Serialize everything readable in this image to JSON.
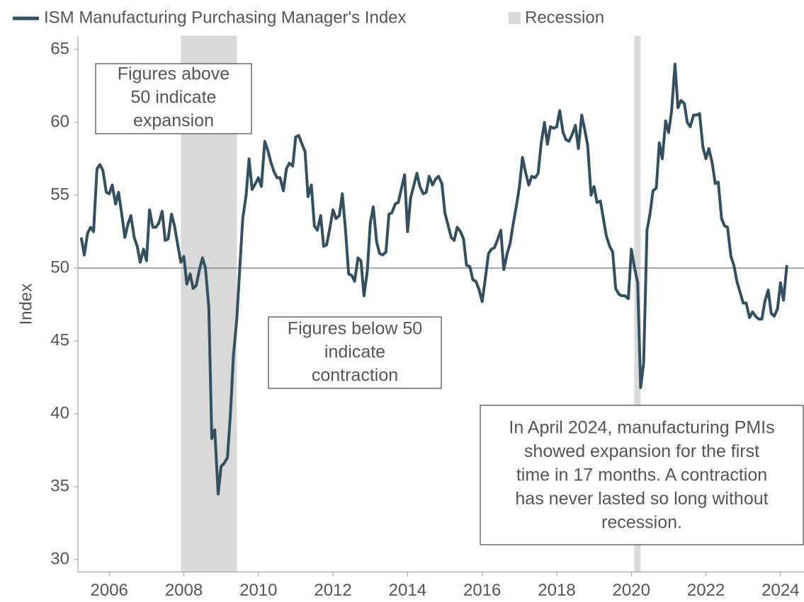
{
  "chart_data": {
    "type": "line",
    "y_label": "Index",
    "x": [
      2005.25,
      2005.33,
      2005.42,
      2005.5,
      2005.58,
      2005.67,
      2005.75,
      2005.83,
      2005.92,
      2006,
      2006.08,
      2006.17,
      2006.25,
      2006.33,
      2006.42,
      2006.5,
      2006.58,
      2006.67,
      2006.75,
      2006.83,
      2006.92,
      2007,
      2007.08,
      2007.17,
      2007.25,
      2007.33,
      2007.42,
      2007.5,
      2007.58,
      2007.67,
      2007.75,
      2007.83,
      2007.92,
      2008,
      2008.08,
      2008.17,
      2008.25,
      2008.33,
      2008.42,
      2008.5,
      2008.58,
      2008.67,
      2008.75,
      2008.83,
      2008.92,
      2009,
      2009.08,
      2009.17,
      2009.25,
      2009.33,
      2009.42,
      2009.5,
      2009.58,
      2009.67,
      2009.75,
      2009.83,
      2009.92,
      2010,
      2010.08,
      2010.17,
      2010.25,
      2010.33,
      2010.42,
      2010.5,
      2010.58,
      2010.67,
      2010.75,
      2010.83,
      2010.92,
      2011,
      2011.08,
      2011.17,
      2011.25,
      2011.33,
      2011.42,
      2011.5,
      2011.58,
      2011.67,
      2011.75,
      2011.83,
      2011.92,
      2012,
      2012.08,
      2012.17,
      2012.25,
      2012.33,
      2012.42,
      2012.5,
      2012.58,
      2012.67,
      2012.75,
      2012.83,
      2012.92,
      2013,
      2013.08,
      2013.17,
      2013.25,
      2013.33,
      2013.42,
      2013.5,
      2013.58,
      2013.67,
      2013.75,
      2013.83,
      2013.92,
      2014,
      2014.08,
      2014.17,
      2014.25,
      2014.33,
      2014.42,
      2014.5,
      2014.58,
      2014.67,
      2014.75,
      2014.83,
      2014.92,
      2015,
      2015.08,
      2015.17,
      2015.25,
      2015.33,
      2015.42,
      2015.5,
      2015.58,
      2015.67,
      2015.75,
      2015.83,
      2015.92,
      2016,
      2016.08,
      2016.17,
      2016.25,
      2016.33,
      2016.42,
      2016.5,
      2016.58,
      2016.67,
      2016.75,
      2016.83,
      2016.92,
      2017,
      2017.08,
      2017.17,
      2017.25,
      2017.33,
      2017.42,
      2017.5,
      2017.58,
      2017.67,
      2017.75,
      2017.83,
      2017.92,
      2018,
      2018.08,
      2018.17,
      2018.25,
      2018.33,
      2018.42,
      2018.5,
      2018.58,
      2018.67,
      2018.75,
      2018.83,
      2018.92,
      2019,
      2019.08,
      2019.17,
      2019.25,
      2019.33,
      2019.42,
      2019.5,
      2019.58,
      2019.67,
      2019.75,
      2019.83,
      2019.92,
      2020,
      2020.08,
      2020.17,
      2020.25,
      2020.33,
      2020.42,
      2020.5,
      2020.58,
      2020.67,
      2020.75,
      2020.83,
      2020.92,
      2021,
      2021.08,
      2021.17,
      2021.25,
      2021.33,
      2021.42,
      2021.5,
      2021.58,
      2021.67,
      2021.75,
      2021.83,
      2021.92,
      2022,
      2022.08,
      2022.17,
      2022.25,
      2022.33,
      2022.42,
      2022.5,
      2022.58,
      2022.67,
      2022.75,
      2022.83,
      2022.92,
      2023,
      2023.08,
      2023.17,
      2023.25,
      2023.33,
      2023.42,
      2023.5,
      2023.58,
      2023.67,
      2023.75,
      2023.83,
      2023.92,
      2024,
      2024.08,
      2024.17
    ],
    "series": [
      {
        "name": "ISM Manufacturing Purchasing Manager's Index",
        "color": "#34505f",
        "values": [
          52.1,
          50.9,
          52.4,
          52.8,
          52.5,
          56.8,
          57.1,
          56.7,
          55.2,
          55.1,
          55.7,
          54.4,
          55.2,
          53.8,
          52.1,
          53.0,
          53.6,
          52.1,
          51.5,
          50.4,
          51.3,
          50.5,
          54.0,
          52.8,
          52.8,
          53.1,
          53.9,
          51.9,
          52.0,
          53.7,
          52.9,
          51.7,
          50.4,
          50.8,
          48.9,
          49.6,
          48.6,
          48.8,
          49.9,
          50.7,
          50.0,
          47.3,
          38.3,
          38.9,
          34.5,
          36.4,
          36.6,
          37.0,
          40.0,
          44.0,
          46.5,
          50.0,
          53.4,
          55.0,
          57.5,
          55.4,
          55.8,
          56.2,
          55.6,
          58.7,
          58.1,
          57.3,
          56.6,
          56.2,
          56.2,
          55.3,
          56.8,
          57.2,
          57.0,
          59.0,
          59.1,
          58.5,
          58.0,
          54.9,
          55.7,
          52.9,
          52.6,
          53.6,
          51.5,
          51.6,
          52.8,
          54.0,
          53.4,
          53.6,
          55.1,
          52.8,
          49.6,
          49.5,
          49.1,
          50.7,
          50.5,
          48.1,
          49.8,
          53.1,
          54.2,
          51.8,
          51.0,
          50.9,
          51.1,
          53.7,
          53.8,
          54.4,
          54.5,
          55.4,
          56.4,
          52.5,
          54.8,
          55.7,
          56.5,
          55.6,
          55.1,
          55.2,
          56.3,
          55.7,
          56.1,
          56.3,
          55.8,
          53.8,
          53.0,
          52.1,
          51.9,
          52.8,
          52.5,
          52.0,
          50.2,
          50.1,
          49.2,
          49.1,
          48.5,
          47.7,
          49.2,
          51.0,
          51.3,
          51.4,
          52.0,
          52.6,
          49.9,
          51.0,
          51.7,
          53.0,
          54.3,
          55.6,
          57.6,
          56.5,
          55.7,
          56.3,
          56.2,
          56.5,
          58.5,
          60.0,
          58.5,
          59.7,
          59.6,
          59.7,
          60.8,
          59.3,
          58.8,
          58.7,
          59.2,
          59.8,
          58.2,
          60.5,
          59.5,
          58.4,
          55.0,
          55.6,
          54.5,
          54.6,
          53.4,
          52.2,
          51.5,
          51.1,
          48.6,
          48.2,
          48.1,
          48.1,
          47.9,
          51.3,
          50.1,
          49.0,
          41.8,
          43.5,
          52.6,
          53.7,
          55.3,
          55.5,
          58.6,
          57.5,
          60.1,
          59.3,
          60.8,
          64.0,
          61.0,
          61.5,
          61.3,
          60.0,
          59.7,
          60.5,
          60.5,
          60.6,
          58.3,
          57.5,
          58.2,
          57.2,
          55.8,
          55.9,
          53.4,
          52.9,
          52.8,
          50.8,
          50.2,
          49.1,
          48.3,
          47.6,
          47.6,
          46.6,
          47.0,
          46.7,
          46.5,
          46.5,
          47.7,
          48.5,
          46.9,
          46.7,
          47.2,
          49.0,
          47.8,
          50.2
        ]
      }
    ],
    "recession": {
      "name": "Recession",
      "color": "#d9d9d9",
      "periods": [
        [
          2007.92,
          2009.42
        ],
        [
          2020.08,
          2020.25
        ]
      ]
    },
    "reference_line": 50,
    "xlim": [
      2005.16,
      2024.63
    ],
    "ylim": [
      29.15,
      65.95
    ],
    "xticks": [
      2006,
      2008,
      2010,
      2012,
      2014,
      2016,
      2018,
      2020,
      2022,
      2024
    ],
    "yticks": [
      30,
      35,
      40,
      45,
      50,
      55,
      60,
      65
    ],
    "annotations": [
      {
        "lines": [
          "Figures above",
          "50 indicate",
          "expansion"
        ]
      },
      {
        "lines": [
          "Figures below 50",
          "indicate",
          "contraction"
        ]
      },
      {
        "lines": [
          "In April 2024, manufacturing PMIs",
          "showed expansion for the first",
          "time in 17 months. A contraction",
          "has never lasted so long without",
          "recession."
        ]
      }
    ]
  }
}
